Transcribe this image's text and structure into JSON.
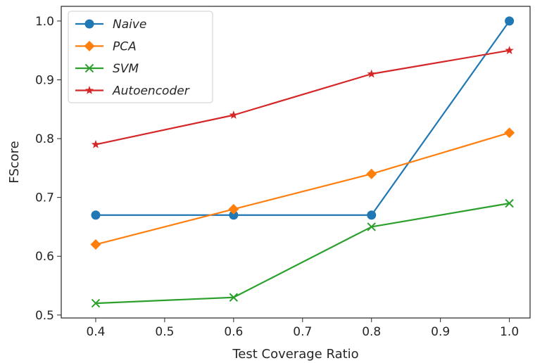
{
  "chart_data": {
    "type": "line",
    "title": "",
    "xlabel": "Test Coverage Ratio",
    "ylabel": "FScore",
    "x": [
      0.4,
      0.6,
      0.8,
      1.0
    ],
    "xlim": [
      0.35,
      1.03
    ],
    "ylim": [
      0.495,
      1.025
    ],
    "xticks": [
      "0.4",
      "0.5",
      "0.6",
      "0.7",
      "0.8",
      "0.9",
      "1.0"
    ],
    "yticks": [
      "0.5",
      "0.6",
      "0.7",
      "0.8",
      "0.9",
      "1.0"
    ],
    "grid": false,
    "legend_position": "top-left",
    "series": [
      {
        "name": "Naive",
        "values": [
          0.67,
          0.67,
          0.67,
          1.0
        ],
        "color": "#1f77b4",
        "marker": "circle"
      },
      {
        "name": "PCA",
        "values": [
          0.62,
          0.68,
          0.74,
          0.81
        ],
        "color": "#ff7f0e",
        "marker": "diamond"
      },
      {
        "name": "SVM",
        "values": [
          0.52,
          0.53,
          0.65,
          0.69
        ],
        "color": "#2ca02c",
        "marker": "x"
      },
      {
        "name": "Autoencoder",
        "values": [
          0.79,
          0.84,
          0.91,
          0.95
        ],
        "color": "#d62728",
        "marker": "star"
      }
    ]
  }
}
